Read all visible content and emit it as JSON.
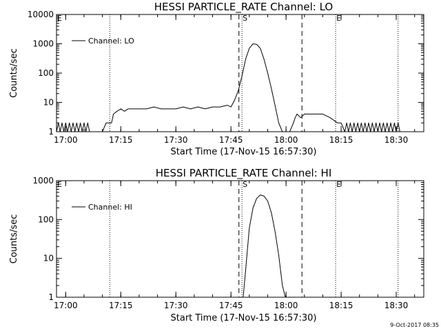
{
  "footer": {
    "timestamp": "9-Oct-2017 08:35"
  },
  "chart_data": [
    {
      "type": "line",
      "title": "HESSI PARTICLE_RATE Channel: LO",
      "xlabel": "Start Time (17-Nov-15 16:57:30)",
      "ylabel": "Counts/sec",
      "yscale": "log",
      "xlim": [
        "16:57:30",
        "18:37:30"
      ],
      "ylim": [
        1,
        10000
      ],
      "xticks": [
        "17:00",
        "17:15",
        "17:30",
        "17:45",
        "18:00",
        "18:15",
        "18:30"
      ],
      "yticks": [
        {
          "value": 1,
          "label": "1"
        },
        {
          "value": 10,
          "label": "10"
        },
        {
          "value": 100,
          "label": "100"
        },
        {
          "value": 1000,
          "label": "1000"
        },
        {
          "value": 10000,
          "label": "10000"
        }
      ],
      "legend": {
        "label": "Channel: LO",
        "placement": "top-left"
      },
      "markers": [
        {
          "time": "16:57:30",
          "label": "E",
          "style": "dotted"
        },
        {
          "time": "17:12:00",
          "label": "",
          "style": "dotted"
        },
        {
          "time": "17:47:10",
          "label": "",
          "style": "dashed"
        },
        {
          "time": "17:48:00",
          "label": "S",
          "style": "dotted"
        },
        {
          "time": "18:04:20",
          "label": "",
          "style": "dashed"
        },
        {
          "time": "18:13:30",
          "label": "E",
          "style": "dotted"
        },
        {
          "time": "18:30:30",
          "label": "",
          "style": "dotted"
        }
      ],
      "series": [
        {
          "name": "Channel: LO",
          "x": [
            "16:57:30",
            "16:58:00",
            "16:58:30",
            "16:59:00",
            "16:59:30",
            "17:00:00",
            "17:00:30",
            "17:01:00",
            "17:01:30",
            "17:02:00",
            "17:02:30",
            "17:03:00",
            "17:03:30",
            "17:04:00",
            "17:04:30",
            "17:05:00",
            "17:05:30",
            "17:06:00",
            "17:06:30",
            "17:07:00",
            "17:08:00",
            "17:09:00",
            "17:10:00",
            "17:11:00",
            "17:11:30",
            "17:12:00",
            "17:12:30",
            "17:13:00",
            "17:14:00",
            "17:15:00",
            "17:16:00",
            "17:17:00",
            "17:18:00",
            "17:20:00",
            "17:22:00",
            "17:24:00",
            "17:26:00",
            "17:28:00",
            "17:30:00",
            "17:32:00",
            "17:34:00",
            "17:36:00",
            "17:38:00",
            "17:40:00",
            "17:42:00",
            "17:44:00",
            "17:45:00",
            "17:46:00",
            "17:47:00",
            "17:48:00",
            "17:49:00",
            "17:50:00",
            "17:51:00",
            "17:52:00",
            "17:53:00",
            "17:54:00",
            "17:55:00",
            "17:56:00",
            "17:57:00",
            "17:58:00",
            "17:59:00",
            "18:00:00",
            "18:01:00",
            "18:02:00",
            "18:02:30",
            "18:03:00",
            "18:04:00",
            "18:05:00",
            "18:05:30",
            "18:06:00",
            "18:08:00",
            "18:10:00",
            "18:12:00",
            "18:14:00",
            "18:15:00",
            "18:16:00",
            "18:16:30",
            "18:17:00",
            "18:17:30",
            "18:18:00",
            "18:18:30",
            "18:19:00",
            "18:19:30",
            "18:20:00",
            "18:20:30",
            "18:21:00",
            "18:21:30",
            "18:22:00",
            "18:22:30",
            "18:23:00",
            "18:23:30",
            "18:24:00",
            "18:24:30",
            "18:25:00",
            "18:25:30",
            "18:26:00",
            "18:26:30",
            "18:27:00",
            "18:27:30",
            "18:28:00",
            "18:28:30",
            "18:29:00",
            "18:29:30",
            "18:30:00",
            "18:30:30",
            "18:31:00"
          ],
          "y": [
            1,
            2,
            1,
            2,
            1,
            2,
            1,
            2,
            1,
            2,
            1,
            2,
            1,
            2,
            1,
            2,
            1,
            2,
            1,
            1,
            1,
            1,
            1,
            2,
            2,
            2,
            2,
            4,
            5,
            6,
            5,
            6,
            6,
            6,
            6,
            7,
            6,
            6,
            6,
            7,
            6,
            7,
            6,
            7,
            7,
            8,
            7,
            12,
            25,
            80,
            300,
            700,
            1000,
            950,
            700,
            300,
            100,
            30,
            8,
            2,
            1,
            1,
            1,
            2,
            3,
            4,
            3,
            4,
            4,
            4,
            4,
            4,
            3,
            2,
            2,
            1,
            2,
            1,
            2,
            1,
            2,
            1,
            2,
            1,
            2,
            1,
            2,
            1,
            2,
            1,
            2,
            1,
            2,
            1,
            2,
            1,
            2,
            1,
            2,
            1,
            2,
            1,
            2,
            1,
            2,
            1
          ]
        }
      ]
    },
    {
      "type": "line",
      "title": "HESSI PARTICLE_RATE Channel: HI",
      "xlabel": "Start Time (17-Nov-15 16:57:30)",
      "ylabel": "Counts/sec",
      "yscale": "log",
      "xlim": [
        "16:57:30",
        "18:37:30"
      ],
      "ylim": [
        1,
        1000
      ],
      "xticks": [
        "17:00",
        "17:15",
        "17:30",
        "17:45",
        "18:00",
        "18:15",
        "18:30"
      ],
      "yticks": [
        {
          "value": 1,
          "label": "1"
        },
        {
          "value": 10,
          "label": "10"
        },
        {
          "value": 100,
          "label": "100"
        },
        {
          "value": 1000,
          "label": "1000"
        }
      ],
      "legend": {
        "label": "Channel: HI",
        "placement": "top-left"
      },
      "markers": [
        {
          "time": "16:57:30",
          "label": "E",
          "style": "dotted"
        },
        {
          "time": "17:12:00",
          "label": "",
          "style": "dotted"
        },
        {
          "time": "17:47:10",
          "label": "",
          "style": "dashed"
        },
        {
          "time": "17:48:00",
          "label": "S",
          "style": "dotted"
        },
        {
          "time": "18:04:20",
          "label": "",
          "style": "dashed"
        },
        {
          "time": "18:13:30",
          "label": "E",
          "style": "dotted"
        },
        {
          "time": "18:30:30",
          "label": "",
          "style": "dotted"
        }
      ],
      "series": [
        {
          "name": "Channel: HI",
          "x": [
            "17:48:20",
            "17:49:00",
            "17:50:00",
            "17:51:00",
            "17:52:00",
            "17:53:00",
            "17:54:00",
            "17:55:00",
            "17:56:00",
            "17:57:00",
            "17:58:00",
            "17:59:00",
            "17:59:50"
          ],
          "y": [
            1,
            5,
            60,
            200,
            350,
            430,
            400,
            300,
            150,
            50,
            12,
            2,
            1
          ]
        }
      ]
    }
  ]
}
